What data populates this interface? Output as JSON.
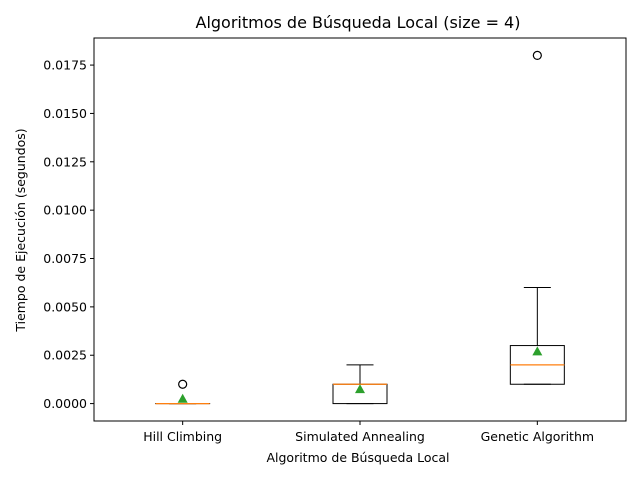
{
  "chart_data": {
    "type": "box",
    "title": "Algoritmos de Búsqueda Local (size = 4)",
    "xlabel": "Algoritmo de Búsqueda Local",
    "ylabel": "Tiempo de Ejecución (segundos)",
    "ylim": [
      -0.0009,
      0.0189
    ],
    "yticks": [
      "0.0000",
      "0.0025",
      "0.0050",
      "0.0075",
      "0.0100",
      "0.0125",
      "0.0150",
      "0.0175"
    ],
    "categories": [
      "Hill Climbing",
      "Simulated Annealing",
      "Genetic Algorithm"
    ],
    "series": [
      {
        "category": "Hill Climbing",
        "whisker_low": 0.0,
        "q1": 0.0,
        "median": 0.0,
        "q3": 0.0,
        "whisker_high": 0.0,
        "mean": 0.00025,
        "outliers": [
          0.001
        ]
      },
      {
        "category": "Simulated Annealing",
        "whisker_low": 0.0,
        "q1": 0.0,
        "median": 0.001,
        "q3": 0.001,
        "whisker_high": 0.002,
        "mean": 0.00075,
        "outliers": []
      },
      {
        "category": "Genetic Algorithm",
        "whisker_low": 0.001,
        "q1": 0.001,
        "median": 0.002,
        "q3": 0.003,
        "whisker_high": 0.006,
        "mean": 0.0027,
        "outliers": [
          0.018
        ]
      }
    ],
    "grid": false,
    "colors": {
      "median": "#ff7f0e",
      "mean": "#2ca02c",
      "box": "#000000"
    }
  }
}
